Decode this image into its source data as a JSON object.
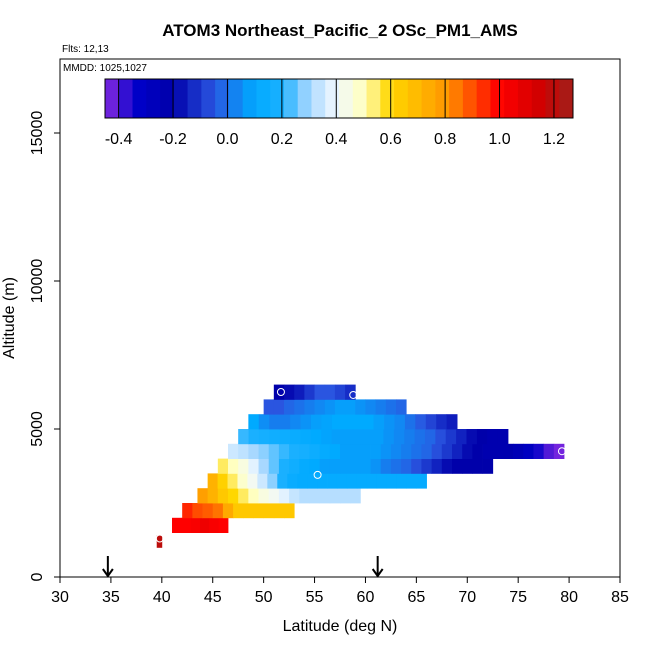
{
  "chart_data": {
    "type": "heatmap",
    "title": "ATOM3 Northeast_Pacific_2 OSc_PM1_AMS",
    "flights_label": "Flts: 12,13",
    "dates_label": "MMDD: 1025,1027",
    "xlabel": "Latitude (deg N)",
    "ylabel": "Altitude (m)",
    "xlim": [
      30,
      85
    ],
    "ylim": [
      0,
      17500
    ],
    "xticks": [
      "30",
      "35",
      "40",
      "45",
      "50",
      "55",
      "60",
      "65",
      "70",
      "75",
      "80",
      "85"
    ],
    "yticks": [
      "0",
      "5000",
      "10000",
      "15000"
    ],
    "colorbar": {
      "min": -0.45,
      "max": 1.27,
      "ticks": [
        "-0.4",
        "-0.2",
        "0.0",
        "0.2",
        "0.4",
        "0.6",
        "0.8",
        "1.0",
        "1.2"
      ],
      "stops": [
        {
          "v": -0.45,
          "c": "#8a2be2"
        },
        {
          "v": -0.33,
          "c": "#0000c8"
        },
        {
          "v": -0.2,
          "c": "#0000aa"
        },
        {
          "v": -0.05,
          "c": "#2a55e0"
        },
        {
          "v": 0.1,
          "c": "#00aaff"
        },
        {
          "v": 0.2,
          "c": "#1ab0ff"
        },
        {
          "v": 0.3,
          "c": "#a8d8ff"
        },
        {
          "v": 0.4,
          "c": "#f0f8ff"
        },
        {
          "v": 0.5,
          "c": "#ffffc0"
        },
        {
          "v": 0.6,
          "c": "#ffd700"
        },
        {
          "v": 0.8,
          "c": "#ff9900"
        },
        {
          "v": 1.0,
          "c": "#ff0000"
        },
        {
          "v": 1.15,
          "c": "#d00000"
        },
        {
          "v": 1.27,
          "c": "#a0201a"
        }
      ]
    },
    "flight_arrows_lat": [
      34.7,
      61.2
    ],
    "rows": [
      {
        "alt_lo": 1000,
        "alt_hi": 1200,
        "start_lat": 39.5,
        "end_lat": 40.0,
        "values": [
          1.2
        ]
      },
      {
        "alt_lo": 1200,
        "alt_hi": 1400,
        "start_lat": 39.5,
        "end_lat": 40.0,
        "values": [
          1.2
        ]
      },
      {
        "alt_lo": 1500,
        "alt_hi": 2000,
        "start_lat": 41.0,
        "end_lat": 46.5,
        "values": [
          1.0,
          1.0,
          1.02,
          1.05,
          1.02,
          1.0
        ]
      },
      {
        "alt_lo": 2000,
        "alt_hi": 2500,
        "start_lat": 42.0,
        "end_lat": 53.0,
        "values": [
          0.95,
          0.9,
          0.88,
          0.85,
          0.75,
          0.65,
          0.65,
          0.65,
          0.65,
          0.65,
          0.65
        ]
      },
      {
        "alt_lo": 2500,
        "alt_hi": 3000,
        "start_lat": 43.5,
        "end_lat": 59.5,
        "values": [
          0.78,
          0.72,
          0.65,
          0.6,
          0.55,
          0.5,
          0.45,
          0.42,
          0.38,
          0.34,
          0.32,
          0.32,
          0.32,
          0.32,
          0.32,
          0.32
        ]
      },
      {
        "alt_lo": 3000,
        "alt_hi": 3500,
        "start_lat": 44.5,
        "end_lat": 66.0,
        "values": [
          0.72,
          0.62,
          0.55,
          0.48,
          0.42,
          0.35,
          0.28,
          0.2,
          0.14,
          0.12,
          0.12,
          0.12,
          0.12,
          0.12,
          0.12,
          0.12,
          0.12,
          0.12,
          0.12,
          0.12,
          0.12,
          0.12
        ]
      },
      {
        "alt_lo": 3500,
        "alt_hi": 4000,
        "start_lat": 45.5,
        "end_lat": 72.5,
        "values": [
          0.55,
          0.5,
          0.45,
          0.38,
          0.3,
          0.25,
          0.2,
          0.16,
          0.12,
          0.1,
          0.08,
          0.08,
          0.08,
          0.08,
          0.08,
          0.06,
          0.02,
          0.0,
          -0.02,
          -0.06,
          -0.1,
          -0.14,
          -0.18,
          -0.2,
          -0.2,
          -0.2,
          -0.2
        ]
      },
      {
        "alt_lo": 4000,
        "alt_hi": 4500,
        "start_lat": 46.5,
        "end_lat": 79.5,
        "values": [
          0.35,
          0.33,
          0.3,
          0.28,
          0.25,
          0.22,
          0.2,
          0.18,
          0.15,
          0.12,
          0.1,
          0.08,
          0.08,
          0.08,
          0.08,
          0.06,
          0.04,
          0.02,
          0.0,
          -0.02,
          -0.06,
          -0.1,
          -0.14,
          -0.18,
          -0.2,
          -0.22,
          -0.22,
          -0.22,
          -0.25,
          -0.3,
          -0.35,
          -0.4,
          -0.43
        ]
      },
      {
        "alt_lo": 4500,
        "alt_hi": 5000,
        "start_lat": 47.5,
        "end_lat": 74.0,
        "values": [
          0.22,
          0.2,
          0.18,
          0.16,
          0.15,
          0.14,
          0.12,
          0.1,
          0.09,
          0.08,
          0.08,
          0.08,
          0.08,
          0.08,
          0.06,
          0.04,
          0.02,
          0.0,
          -0.02,
          -0.06,
          -0.1,
          -0.14,
          -0.18,
          -0.2,
          -0.22,
          -0.22
        ]
      },
      {
        "alt_lo": 5000,
        "alt_hi": 5500,
        "start_lat": 48.5,
        "end_lat": 69.0,
        "values": [
          0.1,
          0.05,
          0.02,
          0.02,
          0.04,
          0.06,
          0.08,
          0.09,
          0.1,
          0.1,
          0.1,
          0.1,
          0.08,
          0.06,
          0.04,
          0.0,
          -0.04,
          -0.08,
          -0.12,
          -0.15
        ]
      },
      {
        "alt_lo": 5500,
        "alt_hi": 6000,
        "start_lat": 50.0,
        "end_lat": 64.0,
        "values": [
          -0.05,
          -0.05,
          -0.02,
          0.0,
          0.02,
          0.04,
          0.06,
          0.08,
          0.08,
          0.06,
          0.04,
          0.02,
          0.0,
          -0.02
        ]
      },
      {
        "alt_lo": 6000,
        "alt_hi": 6500,
        "start_lat": 51.0,
        "end_lat": 59.0,
        "values": [
          -0.2,
          -0.18,
          -0.15,
          -0.1,
          -0.05,
          -0.05,
          -0.08,
          -0.12
        ]
      }
    ],
    "markers": [
      {
        "lat": 51.7,
        "alt": 6250
      },
      {
        "lat": 58.8,
        "alt": 6150
      },
      {
        "lat": 55.3,
        "alt": 3450
      },
      {
        "lat": 79.3,
        "alt": 4250
      },
      {
        "lat": 39.8,
        "alt": 1300
      }
    ]
  }
}
